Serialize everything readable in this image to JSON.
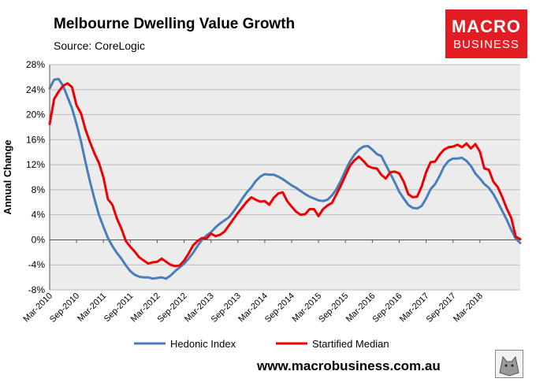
{
  "header": {
    "title": "Melbourne Dwelling Value Growth",
    "source": "Source: CoreLogic"
  },
  "logo": {
    "line1": "MACRO",
    "line2": "BUSINESS"
  },
  "footer": {
    "url": "www.macrobusiness.com.au"
  },
  "colors": {
    "hedonic": "#4a7ebb",
    "median": "#ee0000",
    "plot_bg": "#ececec",
    "brand": "#e31b23"
  },
  "chart_data": {
    "type": "line",
    "title": "Melbourne Dwelling Value Growth",
    "xlabel": "",
    "ylabel": "Annual Change",
    "ylim": [
      -8,
      28
    ],
    "y_ticks": [
      28,
      24,
      20,
      16,
      12,
      8,
      4,
      0,
      -4,
      -8
    ],
    "y_tick_labels": [
      "28%",
      "24%",
      "20%",
      "16%",
      "12%",
      "8%",
      "4%",
      "0%",
      "-4%",
      "-8%"
    ],
    "x_tick_labels": [
      "Mar-2010",
      "Sep-2010",
      "Mar-2011",
      "Sep-2011",
      "Mar-2012",
      "Sep-2012",
      "Mar-2013",
      "Sep-2013",
      "Mar-2014",
      "Sep-2014",
      "Mar-2015",
      "Sep-2015",
      "Mar-2016",
      "Sep-2016",
      "Mar-2017",
      "Sep-2017",
      "Mar-2018"
    ],
    "x_start": "Mar-2010",
    "x_end": "Aug-2018",
    "period": "monthly",
    "legend": "bottom",
    "series": [
      {
        "name": "Hedonic Index",
        "color": "#4a7ebb",
        "values": [
          24.2,
          25.6,
          25.7,
          24.6,
          22.8,
          21.0,
          18.5,
          15.7,
          12.4,
          9.3,
          6.5,
          4.0,
          2.1,
          0.3,
          -1.0,
          -2.1,
          -3.0,
          -4.1,
          -5.0,
          -5.6,
          -5.9,
          -6.0,
          -6.0,
          -6.2,
          -6.1,
          -6.0,
          -6.2,
          -5.7,
          -5.0,
          -4.4,
          -3.8,
          -3.0,
          -2.1,
          -1.0,
          0.0,
          0.7,
          1.2,
          2.0,
          2.6,
          3.1,
          3.6,
          4.5,
          5.5,
          6.6,
          7.6,
          8.4,
          9.4,
          10.1,
          10.5,
          10.4,
          10.4,
          10.1,
          9.7,
          9.2,
          8.7,
          8.3,
          7.8,
          7.3,
          6.9,
          6.6,
          6.3,
          6.2,
          6.4,
          7.1,
          8.1,
          9.5,
          11.1,
          12.5,
          13.6,
          14.4,
          14.9,
          15.0,
          14.4,
          13.7,
          13.4,
          12.0,
          10.6,
          9.2,
          7.7,
          6.6,
          5.6,
          5.1,
          5.0,
          5.4,
          6.6,
          8.1,
          8.9,
          10.2,
          11.7,
          12.6,
          13.0,
          13.0,
          13.1,
          12.6,
          11.8,
          10.6,
          9.8,
          8.9,
          8.3,
          7.3,
          6.0,
          4.6,
          3.2,
          1.6,
          0.2,
          -0.5
        ]
      },
      {
        "name": "Startified Median",
        "color": "#ee0000",
        "values": [
          18.5,
          22.5,
          23.7,
          24.6,
          25.0,
          24.4,
          21.5,
          20.2,
          17.6,
          15.6,
          13.8,
          12.3,
          10.0,
          6.5,
          5.6,
          3.4,
          1.8,
          -0.2,
          -1.1,
          -1.9,
          -2.8,
          -3.3,
          -3.8,
          -3.6,
          -3.5,
          -3.0,
          -3.5,
          -4.0,
          -4.2,
          -4.1,
          -3.3,
          -2.2,
          -0.9,
          -0.2,
          0.3,
          0.2,
          1.0,
          0.6,
          0.8,
          1.3,
          2.3,
          3.3,
          4.3,
          5.2,
          6.1,
          6.8,
          6.4,
          6.1,
          6.2,
          5.6,
          6.7,
          7.4,
          7.6,
          6.2,
          5.3,
          4.5,
          4.0,
          4.1,
          4.9,
          4.9,
          3.8,
          4.9,
          5.5,
          5.9,
          7.3,
          8.7,
          10.3,
          11.8,
          12.7,
          13.3,
          12.6,
          11.8,
          11.5,
          11.4,
          10.4,
          9.8,
          10.8,
          10.9,
          10.6,
          9.3,
          7.3,
          6.8,
          6.9,
          8.5,
          10.8,
          12.4,
          12.5,
          13.6,
          14.4,
          14.8,
          14.9,
          15.2,
          14.8,
          15.4,
          14.6,
          15.3,
          14.1,
          11.4,
          11.2,
          9.3,
          8.4,
          6.8,
          5.0,
          3.5,
          0.5,
          0.1
        ]
      }
    ]
  }
}
